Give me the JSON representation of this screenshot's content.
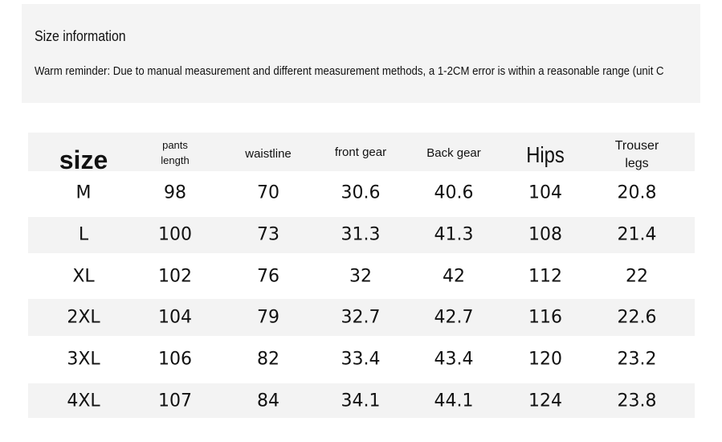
{
  "header": {
    "title": "Size information",
    "reminder": "Warm reminder: Due to manual measurement and different measurement methods, a 1-2CM error is within a reasonable range (unit C"
  },
  "table": {
    "columns": [
      "size",
      "pants length",
      "waistline",
      "front gear",
      "Back gear",
      "Hips",
      "Trouser legs"
    ],
    "rows": [
      [
        "M",
        98,
        70,
        30.6,
        40.6,
        104,
        20.8
      ],
      [
        "L",
        100,
        73,
        31.3,
        41.3,
        108,
        21.4
      ],
      [
        "XL",
        102,
        76,
        32,
        42,
        112,
        22
      ],
      [
        "2XL",
        104,
        79,
        32.7,
        42.7,
        116,
        22.6
      ],
      [
        "3XL",
        106,
        82,
        33.4,
        43.4,
        120,
        23.2
      ],
      [
        "4XL",
        107,
        84,
        34.1,
        44.1,
        124,
        23.8
      ]
    ]
  }
}
